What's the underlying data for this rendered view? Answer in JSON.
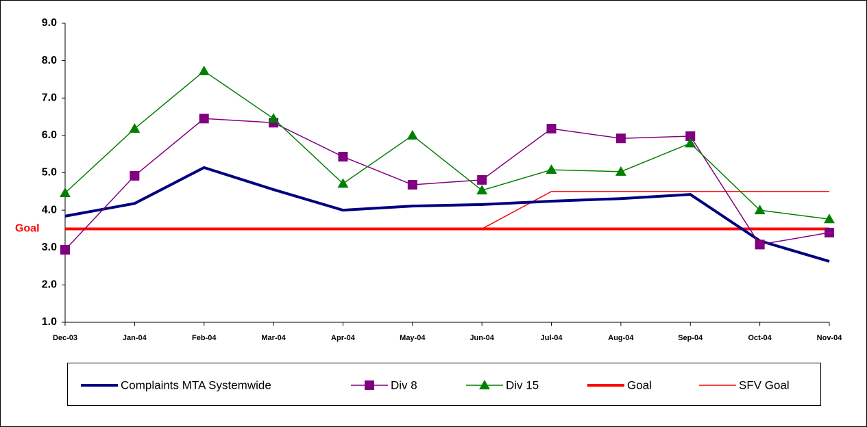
{
  "chart_data": {
    "type": "line",
    "categories": [
      "Dec-03",
      "Jan-04",
      "Feb-04",
      "Mar-04",
      "Apr-04",
      "May-04",
      "Jun-04",
      "Jul-04",
      "Aug-04",
      "Sep-04",
      "Oct-04",
      "Nov-04"
    ],
    "series": [
      {
        "name": "Complaints MTA Systemwide",
        "color": "#000080",
        "marker": "none",
        "width": 4,
        "values": [
          3.84,
          4.18,
          5.14,
          4.55,
          4.0,
          4.11,
          4.15,
          4.24,
          4.31,
          4.42,
          3.18,
          2.63
        ]
      },
      {
        "name": "Div 8",
        "color": "#800080",
        "marker": "square",
        "width": 1.5,
        "values": [
          2.94,
          4.92,
          6.45,
          6.34,
          5.43,
          4.68,
          4.81,
          6.18,
          5.92,
          5.98,
          3.08,
          3.4
        ]
      },
      {
        "name": "Div 15",
        "color": "#008000",
        "marker": "triangle",
        "width": 1.5,
        "values": [
          4.46,
          6.18,
          7.72,
          6.45,
          4.71,
          6.0,
          4.53,
          5.08,
          5.03,
          5.79,
          4.0,
          3.76
        ]
      },
      {
        "name": "Goal",
        "color": "#ff0000",
        "marker": "none",
        "width": 4,
        "values": [
          3.5,
          3.5,
          3.5,
          3.5,
          3.5,
          3.5,
          3.5,
          3.5,
          3.5,
          3.5,
          3.5,
          3.5
        ]
      },
      {
        "name": "SFV Goal",
        "color": "#ff0000",
        "marker": "none",
        "width": 1.5,
        "values": [
          3.5,
          3.5,
          3.5,
          3.5,
          3.5,
          3.5,
          3.5,
          4.5,
          4.5,
          4.5,
          4.5,
          4.5
        ]
      }
    ],
    "ylim": [
      1.0,
      9.0
    ],
    "yticks": [
      {
        "value": 1,
        "label": "1.0"
      },
      {
        "value": 2,
        "label": "2.0"
      },
      {
        "value": 3,
        "label": "3.0"
      },
      {
        "value": 4,
        "label": "4.0"
      },
      {
        "value": 5,
        "label": "5.0"
      },
      {
        "value": 6,
        "label": "6.0"
      },
      {
        "value": 7,
        "label": "7.0"
      },
      {
        "value": 8,
        "label": "8.0"
      },
      {
        "value": 9,
        "label": "9.0"
      }
    ],
    "annotations": [
      {
        "text": "Goal",
        "y": 3.5,
        "color": "#ff0000"
      }
    ],
    "legend": "bottom",
    "grid": false
  }
}
